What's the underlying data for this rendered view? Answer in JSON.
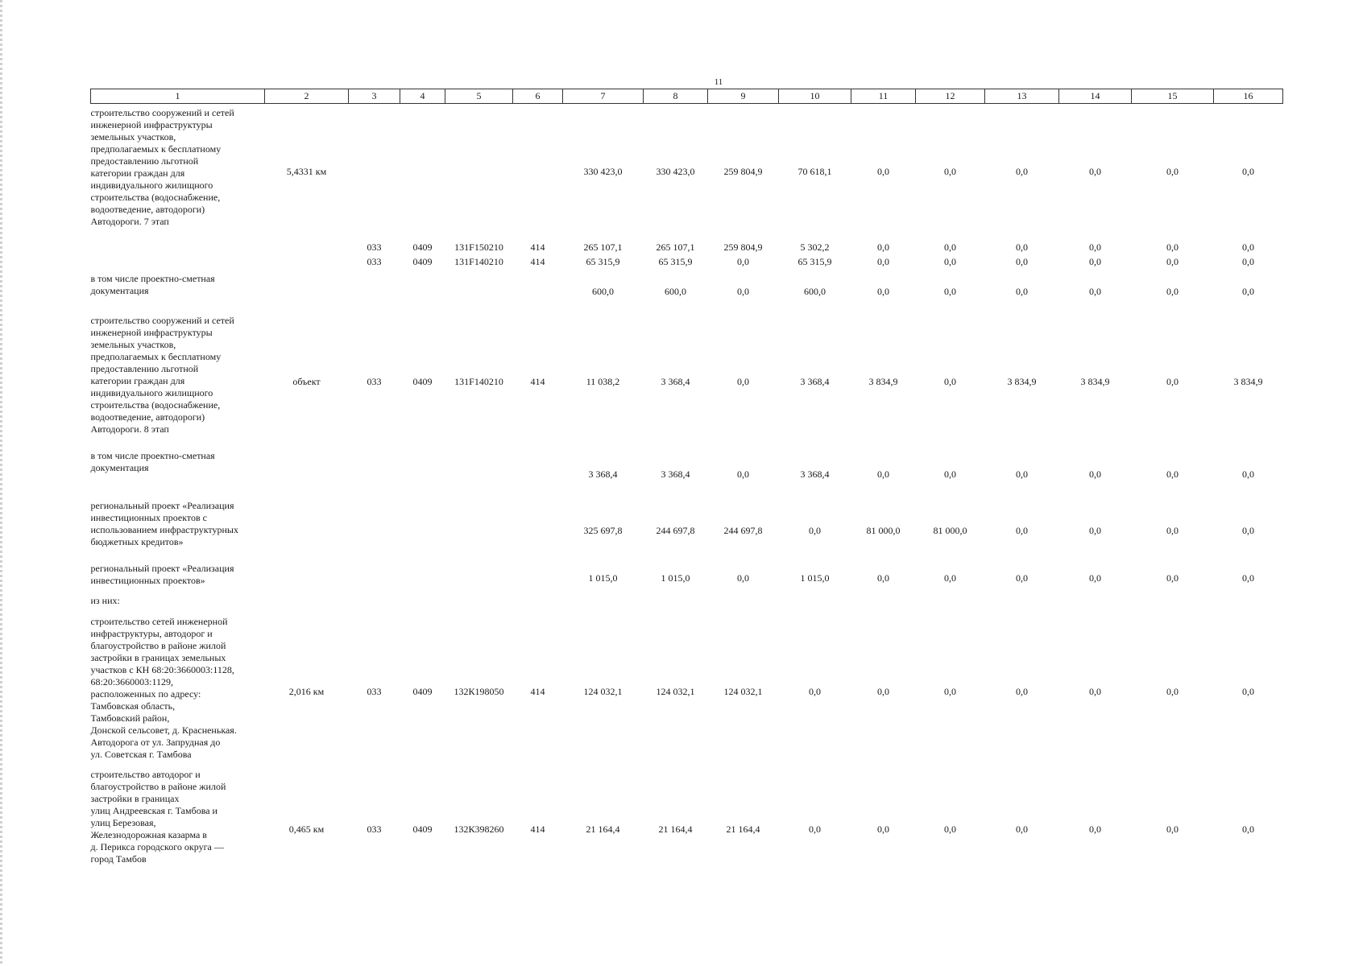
{
  "page_number": "11",
  "column_headers": [
    "1",
    "2",
    "3",
    "4",
    "5",
    "6",
    "7",
    "8",
    "9",
    "10",
    "11",
    "12",
    "13",
    "14",
    "15",
    "16"
  ],
  "rows": [
    {
      "name": "строительство сооружений и сетей\nинженерной инфраструктуры\nземельных участков,\nпредполагаемых к бесплатному\nпредоставлению льготной\nкатегории граждан для\nиндивидуального жилищного\nстроительства (водоснабжение,\nводоотведение, автодороги)\nАвтодороги. 7 этап",
      "cells": [
        "5,4331 км",
        "",
        "",
        "",
        "",
        "330 423,0",
        "330 423,0",
        "259 804,9",
        "70 618,1",
        "0,0",
        "0,0",
        "0,0",
        "0,0",
        "0,0",
        "0,0"
      ]
    },
    {
      "name": "",
      "cells": [
        "",
        "033",
        "0409",
        "131F150210",
        "414",
        "265 107,1",
        "265 107,1",
        "259 804,9",
        "5 302,2",
        "0,0",
        "0,0",
        "0,0",
        "0,0",
        "0,0",
        "0,0"
      ]
    },
    {
      "name": "",
      "cells": [
        "",
        "033",
        "0409",
        "131F140210",
        "414",
        "65 315,9",
        "65 315,9",
        "0,0",
        "65 315,9",
        "0,0",
        "0,0",
        "0,0",
        "0,0",
        "0,0",
        "0,0"
      ]
    },
    {
      "name": "в том числе проектно-сметная\nдокументация",
      "cells": [
        "",
        "",
        "",
        "",
        "",
        "600,0",
        "600,0",
        "0,0",
        "600,0",
        "0,0",
        "0,0",
        "0,0",
        "0,0",
        "0,0",
        "0,0"
      ]
    },
    {
      "name": "строительство сооружений и сетей\nинженерной инфраструктуры\nземельных участков,\nпредполагаемых к бесплатному\nпредоставлению льготной\nкатегории граждан для\nиндивидуального жилищного\nстроительства (водоснабжение,\nводоотведение, автодороги)\nАвтодороги. 8 этап",
      "cells": [
        "объект",
        "033",
        "0409",
        "131F140210",
        "414",
        "11 038,2",
        "3 368,4",
        "0,0",
        "3 368,4",
        "3 834,9",
        "0,0",
        "3 834,9",
        "3 834,9",
        "0,0",
        "3 834,9"
      ]
    },
    {
      "name": "в том числе проектно-сметная\nдокументация",
      "cells": [
        "",
        "",
        "",
        "",
        "",
        "3 368,4",
        "3 368,4",
        "0,0",
        "3 368,4",
        "0,0",
        "0,0",
        "0,0",
        "0,0",
        "0,0",
        "0,0"
      ]
    },
    {
      "name": "региональный проект «Реализация\nинвестиционных проектов с\nиспользованием инфраструктурных\nбюджетных кредитов»",
      "cells": [
        "",
        "",
        "",
        "",
        "",
        "325 697,8",
        "244 697,8",
        "244 697,8",
        "0,0",
        "81 000,0",
        "81 000,0",
        "0,0",
        "0,0",
        "0,0",
        "0,0"
      ]
    },
    {
      "name": "региональный проект «Реализация\nинвестиционных проектов»",
      "cells": [
        "",
        "",
        "",
        "",
        "",
        "1 015,0",
        "1 015,0",
        "0,0",
        "1 015,0",
        "0,0",
        "0,0",
        "0,0",
        "0,0",
        "0,0",
        "0,0"
      ]
    },
    {
      "name": "из них:",
      "cells": [
        "",
        "",
        "",
        "",
        "",
        "",
        "",
        "",
        "",
        "",
        "",
        "",
        "",
        "",
        ""
      ]
    },
    {
      "name": "строительство сетей инженерной\nинфраструктуры, автодорог и\nблагоустройство в районе жилой\nзастройки в границах земельных\nучастков с КН 68:20:3660003:1128,\n68:20:3660003:1129,\nрасположенных по адресу:\nТамбовская область,\nТамбовский район,\nДонской сельсовет, д. Красненькая.\nАвтодорога от ул. Запрудная до\nул. Советская г. Тамбова",
      "cells": [
        "2,016 км",
        "033",
        "0409",
        "132К198050",
        "414",
        "124 032,1",
        "124 032,1",
        "124 032,1",
        "0,0",
        "0,0",
        "0,0",
        "0,0",
        "0,0",
        "0,0",
        "0,0"
      ]
    },
    {
      "name": "строительство автодорог и\nблагоустройство в районе жилой\nзастройки в границах\nулиц Андреевская г. Тамбова и\nулиц Березовая,\nЖелезнодорожная казарма в\nд. Перикса городского округа —\nгород Тамбов",
      "cells": [
        "0,465 км",
        "033",
        "0409",
        "132К398260",
        "414",
        "21 164,4",
        "21 164,4",
        "21 164,4",
        "0,0",
        "0,0",
        "0,0",
        "0,0",
        "0,0",
        "0,0",
        "0,0"
      ]
    }
  ]
}
